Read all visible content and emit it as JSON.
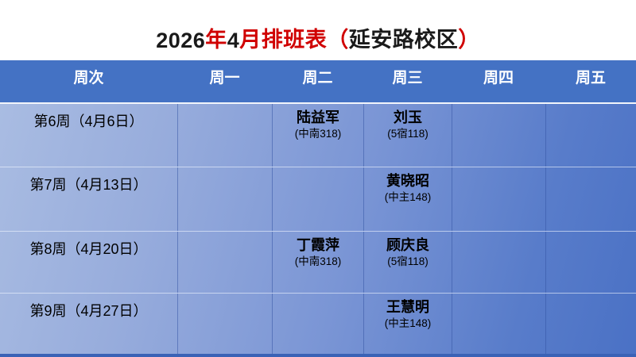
{
  "slide": {
    "title_segments": [
      {
        "text": "2026",
        "color": "#1a1a1a"
      },
      {
        "text": "年",
        "color": "#d00000"
      },
      {
        "text": "4",
        "color": "#1a1a1a"
      },
      {
        "text": "月排班表",
        "color": "#d00000"
      },
      {
        "text": "（",
        "color": "#d00000"
      },
      {
        "text": "延安路校区",
        "color": "#1a1a1a"
      },
      {
        "text": "）",
        "color": "#d00000"
      }
    ]
  },
  "table": {
    "columns": [
      "周次",
      "周一",
      "周二",
      "周三",
      "周四",
      "周五"
    ],
    "rows": [
      {
        "week": "第6周（4月6日）",
        "mon": {
          "name": "",
          "room": ""
        },
        "tue": {
          "name": "陆益军",
          "room": "(中南318)"
        },
        "wed": {
          "name": "刘玉",
          "room": "(5宿118)"
        },
        "thu": {
          "name": "",
          "room": ""
        },
        "fri": {
          "name": "",
          "room": ""
        }
      },
      {
        "week": "第7周（4月13日）",
        "mon": {
          "name": "",
          "room": ""
        },
        "tue": {
          "name": "",
          "room": ""
        },
        "wed": {
          "name": "黄晓昭",
          "room": "(中主148)"
        },
        "thu": {
          "name": "",
          "room": ""
        },
        "fri": {
          "name": "",
          "room": ""
        }
      },
      {
        "week": "第8周（4月20日）",
        "mon": {
          "name": "",
          "room": ""
        },
        "tue": {
          "name": "丁霞萍",
          "room": "(中南318)"
        },
        "wed": {
          "name": "顾庆良",
          "room": "(5宿118)"
        },
        "thu": {
          "name": "",
          "room": ""
        },
        "fri": {
          "name": "",
          "room": ""
        }
      },
      {
        "week": "第9周（4月27日）",
        "mon": {
          "name": "",
          "room": ""
        },
        "tue": {
          "name": "",
          "room": ""
        },
        "wed": {
          "name": "王慧明",
          "room": "(中主148)"
        },
        "thu": {
          "name": "",
          "room": ""
        },
        "fri": {
          "name": "",
          "room": ""
        }
      }
    ]
  },
  "colors": {
    "header_bg": "#4472C4",
    "title_red": "#D00000",
    "title_black": "#1A1A1A",
    "body_gradient_start": "#A9BCE2",
    "body_gradient_end": "#4A71C5",
    "bottom_strip": "#3A62B6",
    "header_text": "#FFFFFF"
  }
}
